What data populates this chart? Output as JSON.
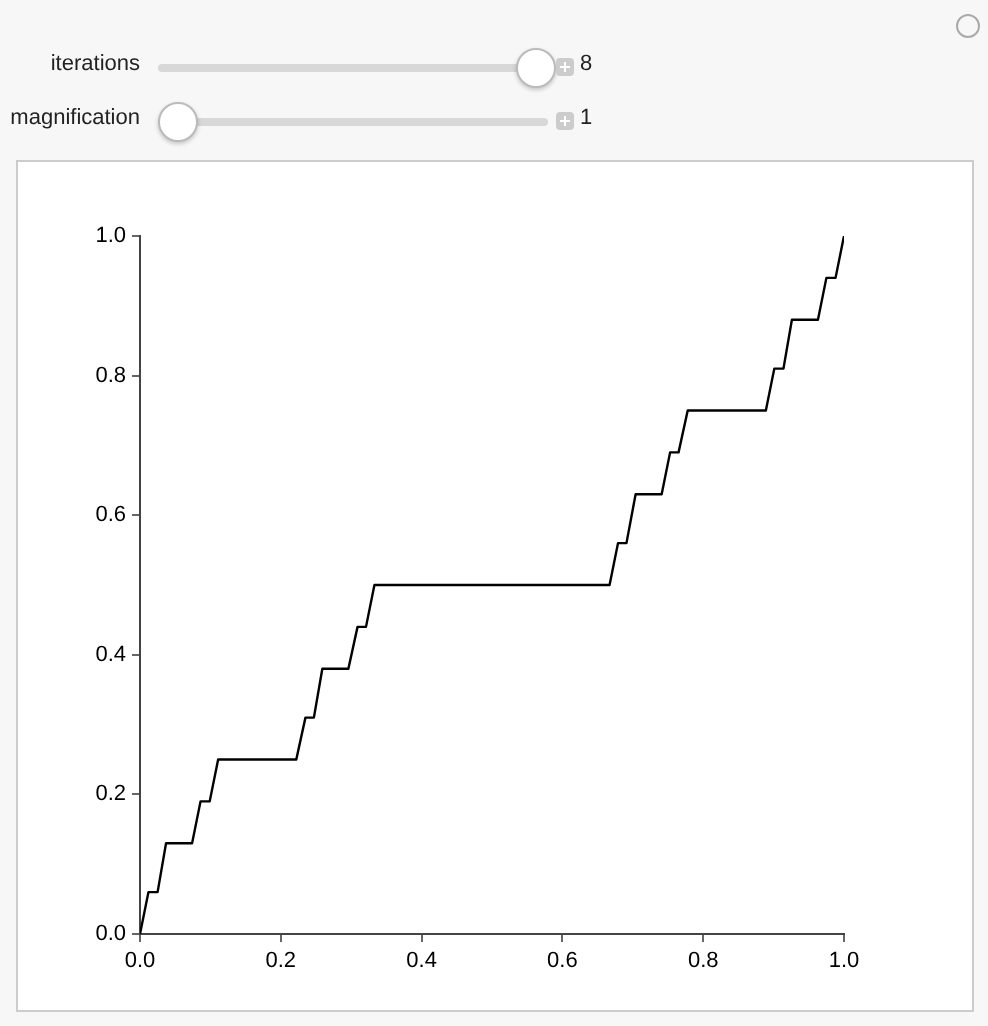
{
  "chart_data": {
    "type": "line",
    "annotations": [
      "iterations",
      "8",
      "magnification",
      "1"
    ],
    "x": [
      0,
      0.012,
      0.025,
      0.037,
      0.074,
      0.086,
      0.099,
      0.111,
      0.222,
      0.235,
      0.247,
      0.259,
      0.296,
      0.309,
      0.321,
      0.333,
      0.667,
      0.679,
      0.691,
      0.704,
      0.741,
      0.753,
      0.765,
      0.778,
      0.889,
      0.901,
      0.914,
      0.926,
      0.963,
      0.975,
      0.988,
      1
    ],
    "series": [
      {
        "color": "#000000",
        "values": [
          0,
          0.06,
          0.06,
          0.13,
          0.13,
          0.19,
          0.19,
          0.25,
          0.25,
          0.31,
          0.31,
          0.38,
          0.38,
          0.44,
          0.44,
          0.5,
          0.5,
          0.56,
          0.56,
          0.63,
          0.63,
          0.69,
          0.69,
          0.75,
          0.75,
          0.81,
          0.81,
          0.88,
          0.88,
          0.94,
          0.94,
          1
        ]
      }
    ],
    "xlim": [
      0,
      1
    ],
    "ylim": [
      0,
      1
    ],
    "xticks": [
      {
        "value": 0,
        "label": "0.0"
      },
      0.2,
      0.4,
      0.6,
      0.8,
      {
        "value": 1,
        "label": "1.0"
      }
    ],
    "yticks": [
      {
        "value": 0,
        "label": "0.0"
      },
      0.2,
      0.4,
      0.6,
      0.8,
      {
        "value": 1,
        "label": "1.0"
      }
    ],
    "marker": "none",
    "line_style": "solid"
  }
}
